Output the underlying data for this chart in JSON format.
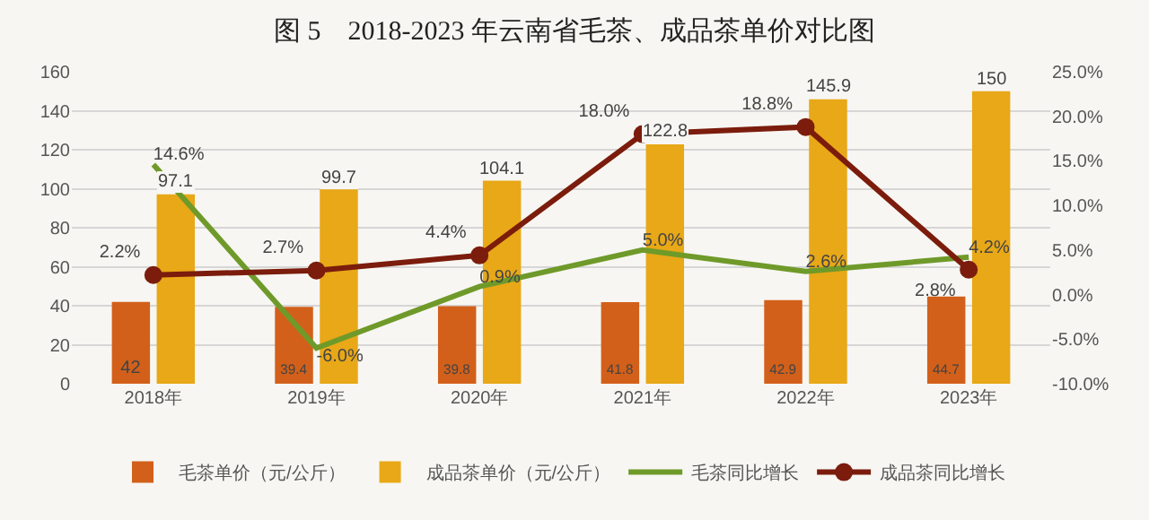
{
  "chart_data": {
    "type": "bar",
    "title": "图 5　2018-2023 年云南省毛茶、成品茶单价对比图",
    "categories": [
      "2018年",
      "2019年",
      "2020年",
      "2021年",
      "2022年",
      "2023年"
    ],
    "series": [
      {
        "name": "毛茶单价（元/公斤）",
        "color": "#d2601a",
        "values": [
          42,
          39.4,
          39.8,
          41.8,
          42.9,
          44.7
        ]
      },
      {
        "name": "成品茶单价（元/公斤）",
        "color": "#e8a817",
        "values": [
          97.1,
          99.7,
          104.1,
          122.8,
          145.9,
          150
        ]
      },
      {
        "name": "毛茶同比增长",
        "type": "line",
        "axis": "y2",
        "marker": "none",
        "color": "#6f9a2a",
        "values": [
          14.6,
          -6.0,
          0.9,
          5.0,
          2.6,
          4.2
        ],
        "value_labels": [
          "14.6%",
          "-6.0%",
          "0.9%",
          "5.0%",
          "2.6%",
          "4.2%"
        ]
      },
      {
        "name": "成品茶同比增长",
        "type": "line",
        "axis": "y2",
        "marker": "circle",
        "color": "#7b1c0c",
        "values": [
          2.2,
          2.7,
          4.4,
          18.0,
          18.8,
          2.8
        ],
        "value_labels": [
          "2.2%",
          "2.7%",
          "4.4%",
          "18.0%",
          "18.8%",
          "2.8%"
        ]
      }
    ],
    "ylim": [
      0,
      160
    ],
    "yticks": [
      0,
      20,
      40,
      60,
      80,
      100,
      120,
      140,
      160
    ],
    "y2lim": [
      -10,
      25
    ],
    "y2ticks": [
      {
        "value": -10,
        "label": "-10.0%"
      },
      {
        "value": -5,
        "label": "-5.0%"
      },
      {
        "value": 0,
        "label": "0.0%"
      },
      {
        "value": 5,
        "label": "5.0%"
      },
      {
        "value": 10,
        "label": "10.0%"
      },
      {
        "value": 15,
        "label": "15.0%"
      },
      {
        "value": 20,
        "label": "20.0%"
      },
      {
        "value": 25,
        "label": "25.0%"
      }
    ],
    "grid": "y",
    "legend": "bottom",
    "data_labels": true,
    "line_style": "solid"
  }
}
